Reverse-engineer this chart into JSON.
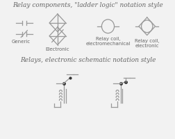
{
  "title1": "Relay components, \"ladder logic\" notation style",
  "title2": "Relays, electronic schematic notation style",
  "bg_color": "#f2f2f2",
  "line_color": "#999999",
  "text_color": "#666666",
  "dark_color": "#333333",
  "label_generic": "Generic",
  "label_electronic": "Electronic",
  "label_coil_em": "Relay coil,\nelectromechanical",
  "label_coil_e": "Relay coil,\nelectronic",
  "font_size_title": 6.5,
  "font_size_label": 5.0
}
